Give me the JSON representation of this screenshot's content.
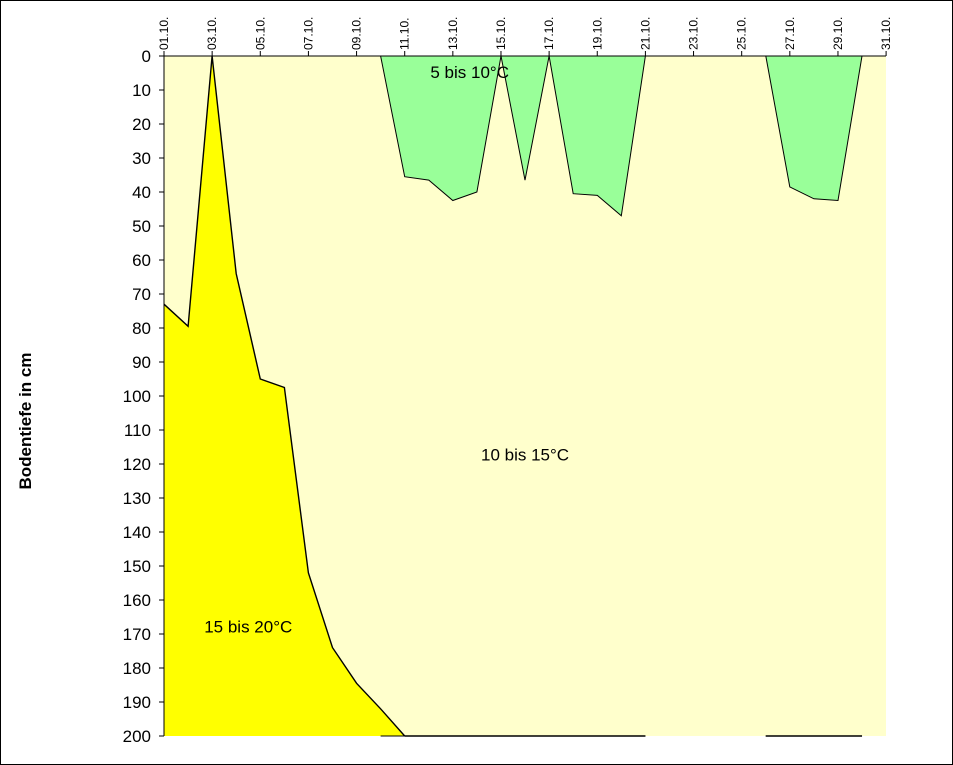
{
  "chart_data": {
    "type": "area",
    "ylabel": "Bodentiefe in cm",
    "ylim": [
      0,
      200
    ],
    "y_inverted": true,
    "y_ticks": [
      0,
      10,
      20,
      30,
      40,
      50,
      60,
      70,
      80,
      90,
      100,
      110,
      120,
      130,
      140,
      150,
      160,
      170,
      180,
      190,
      200
    ],
    "x_range": [
      1,
      31
    ],
    "x_tick_labels": [
      "01.10.",
      "03.10.",
      "05.10.",
      "07.10.",
      "09.10.",
      "11.10.",
      "13.10.",
      "15.10.",
      "17.10.",
      "19.10.",
      "21.10.",
      "23.10.",
      "25.10.",
      "27.10.",
      "29.10.",
      "31.10."
    ],
    "background_zone": {
      "label": "10 bis 15°C",
      "color": "#FFFFCC"
    },
    "zones": [
      {
        "label": "15 bis 20°C",
        "color": "#FFFF00",
        "boundary_days": [
          1,
          2,
          3,
          4,
          5,
          6,
          7,
          8,
          9,
          10,
          11
        ],
        "boundary_depths": [
          73,
          79.5,
          0,
          64,
          95,
          97.5,
          152,
          174,
          184.5,
          192,
          200
        ]
      },
      {
        "label": "5 bis 10°C",
        "color": "#99FF99",
        "segments": [
          {
            "days": [
              10,
              11,
              12,
              13,
              14,
              15
            ],
            "depths": [
              0,
              35.5,
              36.5,
              42.5,
              40,
              0
            ]
          },
          {
            "days": [
              15,
              16,
              17
            ],
            "depths": [
              0,
              36.5,
              0
            ]
          },
          {
            "days": [
              17,
              18,
              19,
              20,
              21
            ],
            "depths": [
              0,
              40.5,
              41,
              47,
              0
            ]
          },
          {
            "days": [
              26,
              27,
              28,
              29,
              30
            ],
            "depths": [
              0,
              38.5,
              42,
              42.5,
              0
            ]
          }
        ]
      }
    ],
    "grid": false
  }
}
